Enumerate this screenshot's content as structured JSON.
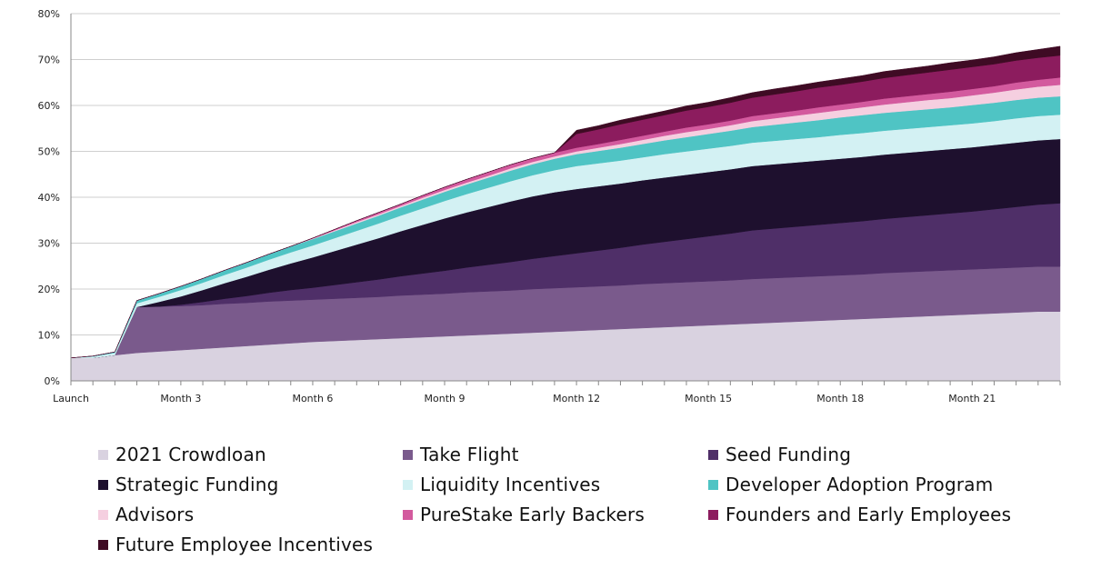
{
  "chart_data": {
    "type": "area",
    "stacked": true,
    "title": "",
    "xlabel": "",
    "ylabel": "",
    "ylim": [
      0,
      80
    ],
    "yticks": [
      "0%",
      "10%",
      "20%",
      "30%",
      "40%",
      "50%",
      "60%",
      "70%",
      "80%"
    ],
    "x": [
      "Launch",
      "",
      "",
      "",
      "",
      "Month 3",
      "",
      "",
      "",
      "",
      "",
      "Month 6",
      "",
      "",
      "",
      "",
      "",
      "Month 9",
      "",
      "",
      "",
      "",
      "",
      "Month 12",
      "",
      "",
      "",
      "",
      "",
      "Month 15",
      "",
      "",
      "",
      "",
      "",
      "Month 18",
      "",
      "",
      "",
      "",
      "",
      "Month 21",
      "",
      "",
      "",
      ""
    ],
    "grid": "horizontal",
    "legend_position": "bottom",
    "series": [
      {
        "name": "2021 Crowdloan",
        "color": "#d9d2e0",
        "values": [
          5.0,
          5.0,
          5.6,
          6.1,
          6.4,
          6.7,
          7.0,
          7.3,
          7.6,
          7.9,
          8.2,
          8.5,
          8.7,
          8.9,
          9.1,
          9.3,
          9.5,
          9.7,
          9.9,
          10.1,
          10.3,
          10.5,
          10.7,
          10.9,
          11.1,
          11.3,
          11.5,
          11.7,
          11.9,
          12.1,
          12.3,
          12.5,
          12.7,
          12.9,
          13.1,
          13.3,
          13.5,
          13.7,
          13.9,
          14.1,
          14.3,
          14.5,
          14.7,
          14.9,
          15.1,
          15.1
        ]
      },
      {
        "name": "Take Flight",
        "color": "#7a5a8c",
        "values": [
          0,
          0,
          0,
          10.0,
          9.8,
          9.6,
          9.5,
          9.5,
          9.4,
          9.4,
          9.3,
          9.2,
          9.2,
          9.2,
          9.2,
          9.3,
          9.3,
          9.3,
          9.4,
          9.4,
          9.4,
          9.5,
          9.5,
          9.5,
          9.5,
          9.5,
          9.6,
          9.6,
          9.6,
          9.6,
          9.6,
          9.7,
          9.7,
          9.7,
          9.7,
          9.7,
          9.7,
          9.8,
          9.8,
          9.8,
          9.8,
          9.8,
          9.8,
          9.8,
          9.8,
          9.8
        ]
      },
      {
        "name": "Seed Funding",
        "color": "#4f2f68",
        "values": [
          0,
          0,
          0,
          0,
          0,
          0.3,
          0.7,
          1.1,
          1.5,
          1.9,
          2.3,
          2.6,
          3.0,
          3.4,
          3.8,
          4.2,
          4.6,
          5.0,
          5.4,
          5.8,
          6.2,
          6.6,
          7.0,
          7.4,
          7.8,
          8.2,
          8.6,
          9.0,
          9.4,
          9.8,
          10.2,
          10.6,
          10.8,
          11.0,
          11.2,
          11.4,
          11.6,
          11.8,
          12.0,
          12.2,
          12.4,
          12.6,
          12.9,
          13.2,
          13.5,
          13.8
        ]
      },
      {
        "name": "Strategic Funding",
        "color": "#1e102e",
        "values": [
          0,
          0,
          0,
          0,
          1.0,
          1.8,
          2.6,
          3.4,
          4.2,
          5.0,
          5.8,
          6.6,
          7.4,
          8.2,
          9.0,
          9.8,
          10.6,
          11.4,
          12.0,
          12.6,
          13.2,
          13.6,
          13.9,
          14.0,
          14.0,
          14.0,
          14.0,
          14.0,
          14.0,
          14.0,
          14.0,
          14.0,
          14.0,
          14.0,
          14.0,
          14.0,
          14.0,
          14.0,
          14.0,
          14.0,
          14.0,
          14.0,
          14.0,
          14.0,
          14.0,
          14.0
        ]
      },
      {
        "name": "Liquidity Incentives",
        "color": "#d3f1f3",
        "values": [
          0,
          0.3,
          0.5,
          0.8,
          1.1,
          1.4,
          1.6,
          1.8,
          2.0,
          2.2,
          2.4,
          2.6,
          2.8,
          3.0,
          3.2,
          3.4,
          3.6,
          3.8,
          4.0,
          4.2,
          4.4,
          4.6,
          4.8,
          5.0,
          5.0,
          5.0,
          5.0,
          5.1,
          5.1,
          5.1,
          5.1,
          5.1,
          5.1,
          5.1,
          5.1,
          5.2,
          5.2,
          5.2,
          5.2,
          5.2,
          5.2,
          5.2,
          5.2,
          5.3,
          5.3,
          5.3
        ]
      },
      {
        "name": "Developer Adoption Program",
        "color": "#4fc4c4",
        "values": [
          0,
          0.1,
          0.2,
          0.6,
          0.7,
          0.8,
          0.9,
          1.0,
          1.1,
          1.2,
          1.3,
          1.4,
          1.5,
          1.6,
          1.7,
          1.8,
          1.9,
          2.0,
          2.1,
          2.2,
          2.3,
          2.4,
          2.5,
          2.6,
          2.7,
          2.8,
          2.9,
          3.0,
          3.1,
          3.2,
          3.3,
          3.4,
          3.5,
          3.6,
          3.7,
          3.8,
          3.9,
          3.9,
          3.9,
          3.9,
          3.9,
          4.0,
          4.0,
          4.0,
          4.0,
          4.0
        ]
      },
      {
        "name": "Advisors",
        "color": "#f5cfe0",
        "values": [
          0,
          0,
          0,
          0,
          0,
          0,
          0,
          0,
          0,
          0,
          0,
          0.1,
          0.2,
          0.3,
          0.3,
          0.3,
          0.4,
          0.4,
          0.4,
          0.4,
          0.5,
          0.5,
          0.5,
          0.6,
          0.7,
          0.8,
          0.9,
          1.0,
          1.1,
          1.1,
          1.2,
          1.3,
          1.4,
          1.5,
          1.6,
          1.6,
          1.7,
          1.8,
          1.9,
          2.0,
          2.0,
          2.1,
          2.2,
          2.3,
          2.4,
          2.5
        ]
      },
      {
        "name": "PureStake Early Backers",
        "color": "#d35a9e",
        "values": [
          0,
          0,
          0,
          0,
          0,
          0,
          0,
          0,
          0,
          0,
          0,
          0.1,
          0.2,
          0.3,
          0.4,
          0.4,
          0.5,
          0.6,
          0.7,
          0.8,
          0.8,
          0.8,
          0.8,
          0.8,
          0.8,
          0.9,
          0.9,
          0.9,
          1.0,
          1.0,
          1.0,
          1.1,
          1.1,
          1.1,
          1.2,
          1.2,
          1.2,
          1.3,
          1.3,
          1.3,
          1.4,
          1.4,
          1.4,
          1.5,
          1.5,
          1.6
        ]
      },
      {
        "name": "Founders and Early Employees",
        "color": "#8c1c5e",
        "values": [
          0,
          0,
          0,
          0,
          0,
          0,
          0,
          0,
          0,
          0,
          0,
          0,
          0,
          0,
          0,
          0,
          0,
          0,
          0,
          0,
          0,
          0,
          0,
          3.0,
          3.2,
          3.4,
          3.5,
          3.6,
          3.7,
          3.8,
          3.9,
          4.0,
          4.1,
          4.2,
          4.3,
          4.3,
          4.4,
          4.5,
          4.6,
          4.7,
          4.8,
          4.8,
          4.8,
          4.8,
          4.8,
          4.8
        ]
      },
      {
        "name": "Future Employee Incentives",
        "color": "#3f0b24",
        "values": [
          0,
          0,
          0,
          0,
          0,
          0,
          0,
          0,
          0,
          0,
          0,
          0,
          0,
          0,
          0,
          0,
          0,
          0,
          0,
          0,
          0,
          0,
          0,
          0.8,
          0.8,
          0.9,
          0.9,
          0.9,
          1.0,
          1.0,
          1.1,
          1.1,
          1.2,
          1.2,
          1.2,
          1.3,
          1.3,
          1.4,
          1.4,
          1.4,
          1.5,
          1.5,
          1.6,
          1.7,
          1.8,
          2.0
        ]
      }
    ]
  }
}
